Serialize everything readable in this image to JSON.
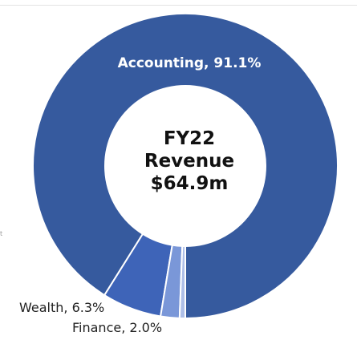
{
  "left_edge_fragment": "t",
  "center": {
    "line1": "FY22",
    "line2": "Revenue",
    "line3": "$64.9m"
  },
  "chart_data": {
    "type": "pie",
    "style": "donut",
    "segments": [
      {
        "label": "Accounting, 91.1%",
        "value": 91.1,
        "color": "#365a9e"
      },
      {
        "label": "Wealth, 6.3%",
        "value": 6.3,
        "color": "#3e64b8"
      },
      {
        "label": "Finance, 2.0%",
        "value": 2.0,
        "color": "#7a97d8"
      },
      {
        "label": "",
        "value": 0.6,
        "color": "#aebfe8"
      }
    ]
  }
}
